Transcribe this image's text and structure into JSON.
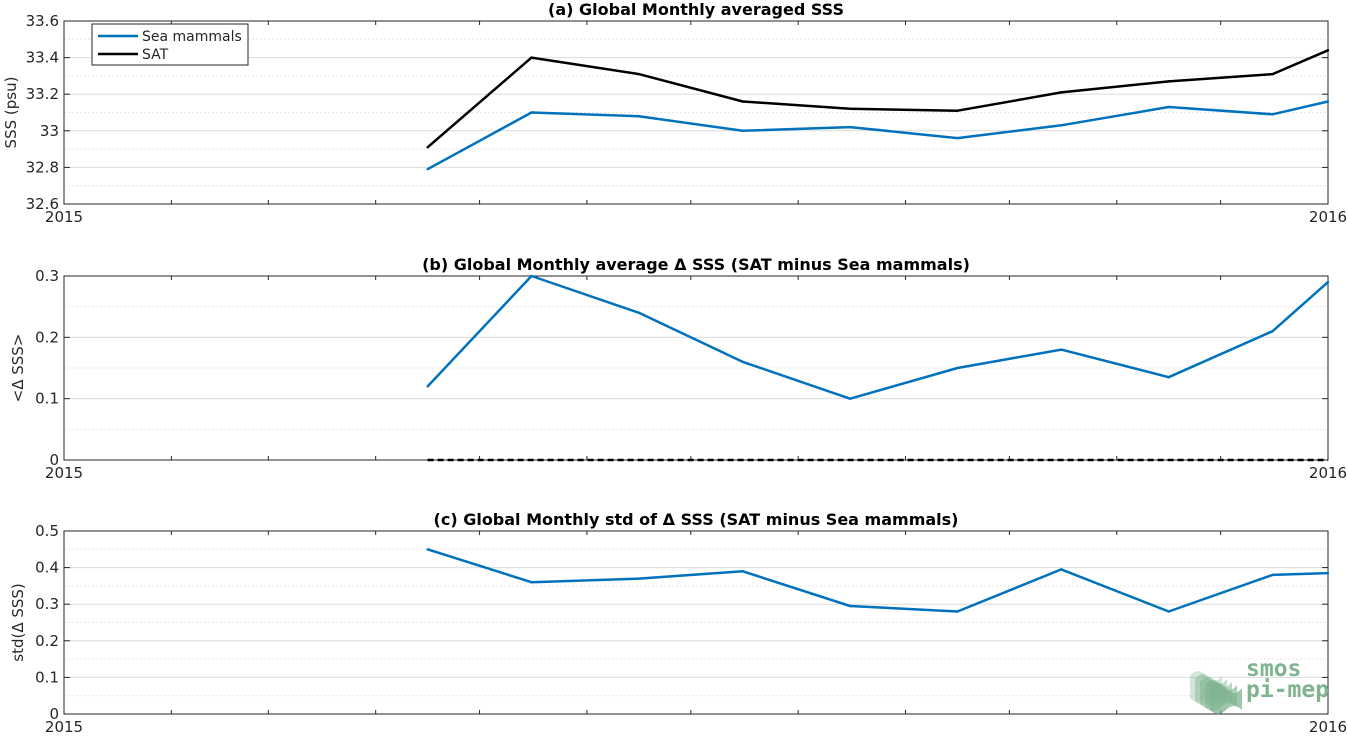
{
  "chart_data": [
    {
      "type": "line",
      "title": "(a) Global Monthly averaged SSS",
      "ylabel": "SSS (psu)",
      "xlabel": "",
      "x_ticks": [
        "2015",
        "2016"
      ],
      "x_range": [
        "2015-01-01",
        "2016-01-01"
      ],
      "ylim": [
        32.6,
        33.6
      ],
      "y_ticks": [
        32.6,
        32.8,
        33,
        33.2,
        33.4,
        33.6
      ],
      "y_tick_labels": [
        "32.6",
        "32.8",
        "33",
        "33.2",
        "33.4",
        "33.6"
      ],
      "grid": true,
      "legend": "top-left",
      "x": [
        "2015-04-16",
        "2015-05-16",
        "2015-06-16",
        "2015-07-16",
        "2015-08-16",
        "2015-09-16",
        "2015-10-16",
        "2015-11-16",
        "2015-12-16",
        "2016-01-01"
      ],
      "series": [
        {
          "name": "Sea mammals",
          "color": "#0072bd",
          "values": [
            32.79,
            33.1,
            33.08,
            33.0,
            33.02,
            32.96,
            33.03,
            33.13,
            33.09,
            33.16
          ]
        },
        {
          "name": "SAT",
          "color": "#000000",
          "values": [
            32.91,
            33.4,
            33.31,
            33.16,
            33.12,
            33.11,
            33.21,
            33.27,
            33.31,
            33.44
          ]
        }
      ]
    },
    {
      "type": "line",
      "title": "(b) Global Monthly average Δ SSS (SAT minus Sea mammals)",
      "ylabel": "<Δ SSS>",
      "xlabel": "",
      "x_ticks": [
        "2015",
        "2016"
      ],
      "x_range": [
        "2015-01-01",
        "2016-01-01"
      ],
      "ylim": [
        0,
        0.3
      ],
      "y_ticks": [
        0,
        0.1,
        0.2,
        0.3
      ],
      "y_tick_labels": [
        "0",
        "0.1",
        "0.2",
        "0.3"
      ],
      "grid": true,
      "x": [
        "2015-04-16",
        "2015-05-16",
        "2015-06-16",
        "2015-07-16",
        "2015-08-16",
        "2015-09-16",
        "2015-10-16",
        "2015-11-16",
        "2015-12-16",
        "2016-01-01"
      ],
      "series": [
        {
          "color": "#0072bd",
          "values": [
            0.12,
            0.3,
            0.24,
            0.16,
            0.1,
            0.15,
            0.18,
            0.135,
            0.21,
            0.29
          ]
        }
      ],
      "zero_line": {
        "value": 0,
        "style": "dashed",
        "color": "#000000"
      }
    },
    {
      "type": "line",
      "title": "(c) Global Monthly std of Δ SSS (SAT minus Sea mammals)",
      "ylabel": "std(Δ SSS)",
      "xlabel": "",
      "x_ticks": [
        "2015",
        "2016"
      ],
      "x_range": [
        "2015-01-01",
        "2016-01-01"
      ],
      "ylim": [
        0,
        0.5
      ],
      "y_ticks": [
        0,
        0.1,
        0.2,
        0.3,
        0.4,
        0.5
      ],
      "y_tick_labels": [
        "0",
        "0.1",
        "0.2",
        "0.3",
        "0.4",
        "0.5"
      ],
      "grid": true,
      "x": [
        "2015-04-16",
        "2015-05-16",
        "2015-06-16",
        "2015-07-16",
        "2015-08-16",
        "2015-09-16",
        "2015-10-16",
        "2015-11-16",
        "2015-12-16",
        "2016-01-01"
      ],
      "series": [
        {
          "color": "#0072bd",
          "values": [
            0.45,
            0.36,
            0.37,
            0.39,
            0.295,
            0.28,
            0.395,
            0.28,
            0.38,
            0.385
          ]
        }
      ]
    }
  ],
  "logo": {
    "line1": "smos",
    "line2": "pi-mep",
    "color": "#7fb48f"
  }
}
